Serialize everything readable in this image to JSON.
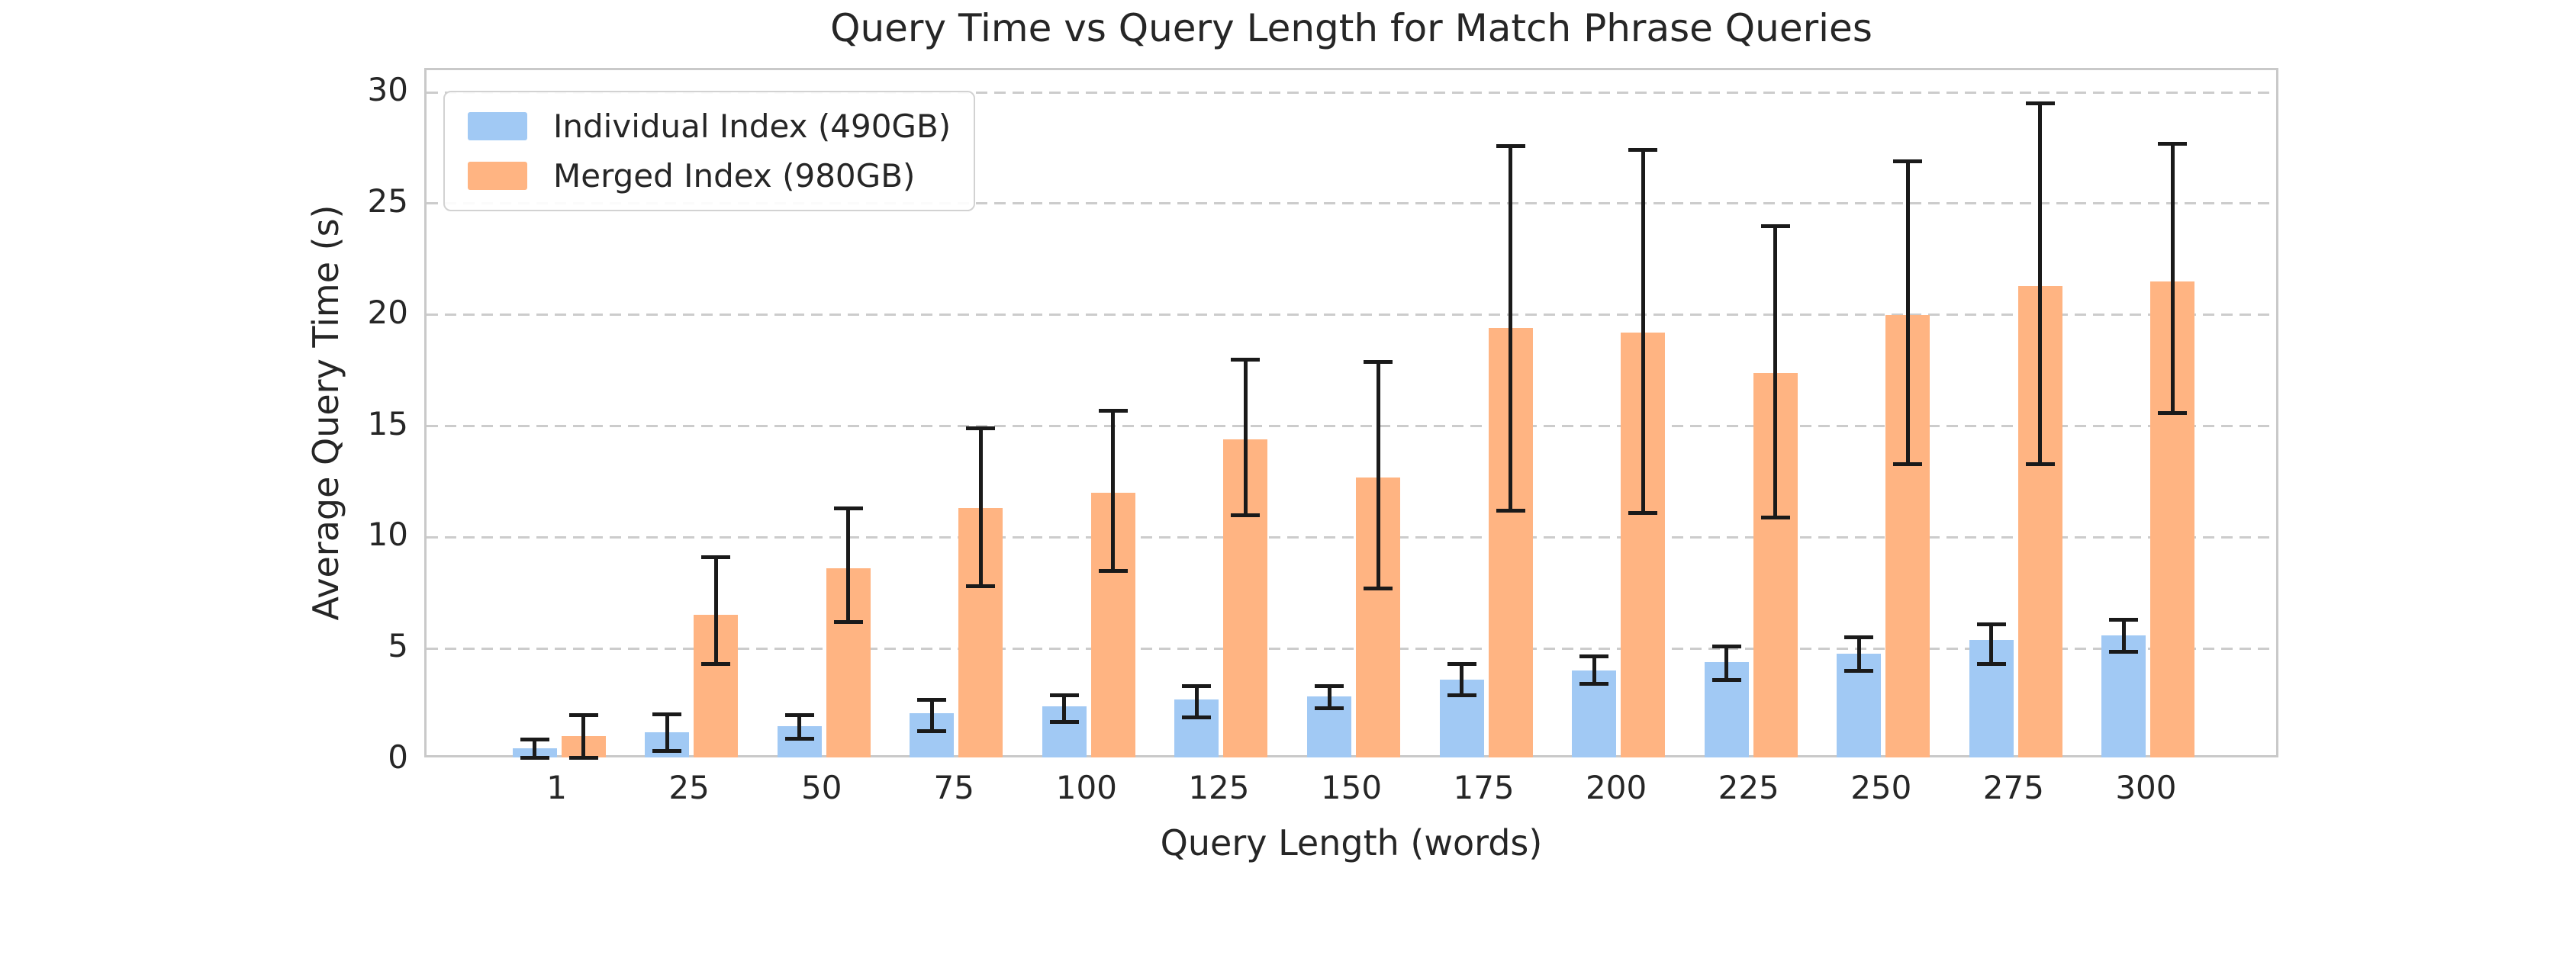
{
  "chart_data": {
    "type": "bar",
    "title": "Query Time vs Query Length for Match Phrase Queries",
    "xlabel": "Query Length (words)",
    "ylabel": "Average Query Time (s)",
    "categories": [
      "1",
      "25",
      "50",
      "75",
      "100",
      "125",
      "150",
      "175",
      "200",
      "225",
      "250",
      "275",
      "300"
    ],
    "series": [
      {
        "name": "Individual Index (490GB)",
        "color": "#a1c9f4",
        "values": [
          0.5,
          1.25,
          1.5,
          2.1,
          2.4,
          2.7,
          2.85,
          3.6,
          4.0,
          4.4,
          4.75,
          5.4,
          5.6
        ],
        "err_lo": [
          0.1,
          0.4,
          0.95,
          1.3,
          1.7,
          1.9,
          2.3,
          2.9,
          3.4,
          3.6,
          4.0,
          4.3,
          4.85
        ],
        "err_hi": [
          0.9,
          2.05,
          2.0,
          2.7,
          2.9,
          3.3,
          3.3,
          4.3,
          4.65,
          5.1,
          5.5,
          6.1,
          6.3
        ]
      },
      {
        "name": "Merged Index (980GB)",
        "color": "#ffb482",
        "values": [
          1.05,
          6.5,
          8.6,
          11.3,
          12.0,
          14.4,
          12.7,
          19.4,
          19.2,
          17.4,
          20.0,
          21.3,
          21.5
        ],
        "err_lo": [
          0.1,
          4.3,
          6.2,
          7.8,
          8.5,
          11.0,
          7.7,
          11.2,
          11.1,
          10.9,
          13.3,
          13.3,
          15.6
        ],
        "err_hi": [
          2.0,
          9.1,
          11.3,
          14.9,
          15.7,
          18.0,
          17.9,
          27.6,
          27.4,
          24.0,
          26.9,
          29.5,
          27.7
        ]
      }
    ],
    "yticks": [
      0,
      5,
      10,
      15,
      20,
      25,
      30
    ],
    "ylim": [
      0,
      31
    ],
    "grid": "horizontal-dashed",
    "legend_position": "upper-left",
    "colors": {
      "grid": "#cccccc",
      "spine": "#c9c9c9",
      "errorbar": "#1a1a1a",
      "text": "#262626",
      "background": "#ffffff"
    }
  }
}
